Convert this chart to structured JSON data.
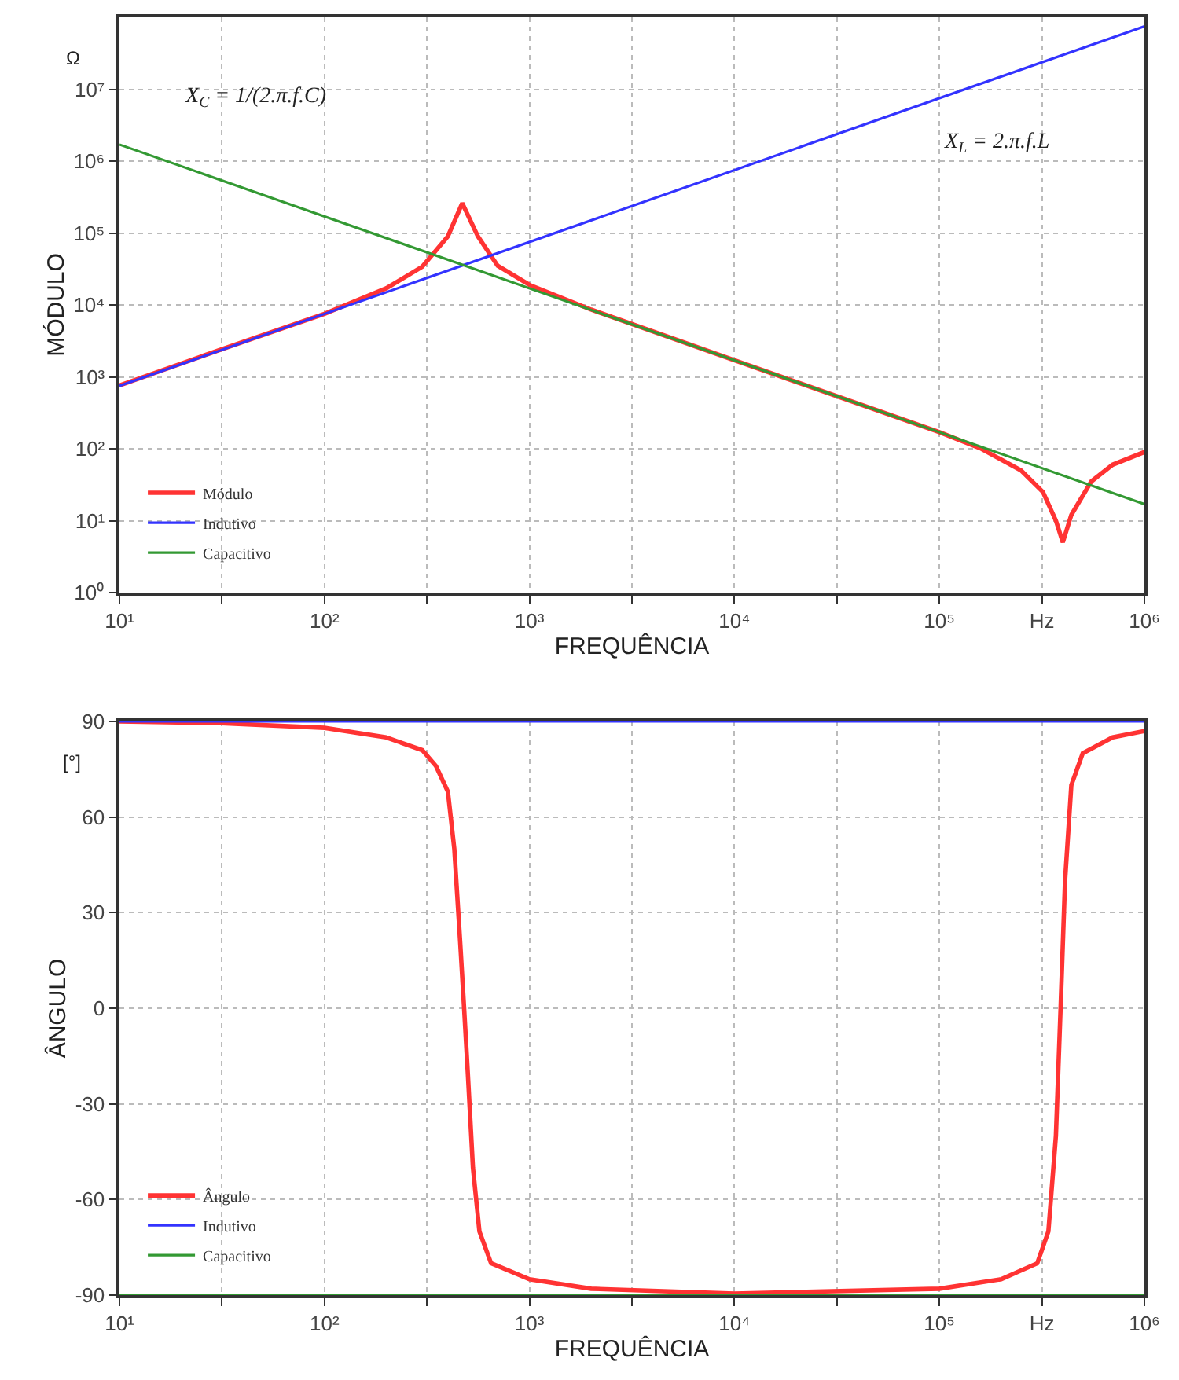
{
  "chart_data": [
    {
      "type": "line",
      "ylabel": "MÓDULO",
      "xlabel": "FREQUÊNCIA",
      "log": "xy",
      "grid": true,
      "legend": "bottom left",
      "line_style": "solid",
      "xlim": [
        10,
        1000000
      ],
      "ylim": [
        1,
        100000000
      ],
      "xticks": [
        {
          "value": 10,
          "label": "10¹"
        },
        {
          "value": 31.6,
          "label": null
        },
        {
          "value": 100,
          "label": "10²"
        },
        {
          "value": 316,
          "label": null
        },
        {
          "value": 1000,
          "label": "10³"
        },
        {
          "value": 3160,
          "label": null
        },
        {
          "value": 10000,
          "label": "10⁴"
        },
        {
          "value": 31600,
          "label": null
        },
        {
          "value": 100000,
          "label": "10⁵"
        },
        {
          "value": 316000,
          "label": "Hz"
        },
        {
          "value": 1000000,
          "label": "10⁶"
        }
      ],
      "yticks": [
        {
          "value": 1,
          "label": "10⁰"
        },
        {
          "value": 10,
          "label": "10¹"
        },
        {
          "value": 100,
          "label": "10²"
        },
        {
          "value": 1000,
          "label": "10³"
        },
        {
          "value": 10000,
          "label": "10⁴"
        },
        {
          "value": 100000,
          "label": "10⁵"
        },
        {
          "value": 1000000,
          "label": "10⁶"
        },
        {
          "value": 10000000,
          "label": "10⁷"
        }
      ],
      "annotations": [
        "Ω",
        "X$_{C}$ = 1/(2.π.f.C)",
        "X$_{L}$ = 2.π.f.L"
      ],
      "series": [
        {
          "name": "Módulo",
          "color": "#ff3333",
          "x": [
            10,
            30,
            100,
            200,
            300,
            400,
            470,
            560,
            700,
            1000,
            2000,
            10000,
            100000,
            160000,
            250000,
            320000,
            370000,
            400000,
            440000,
            550000,
            700000,
            1000000
          ],
          "values": [
            760,
            2300,
            7500,
            17000,
            34000,
            90000,
            260000,
            90000,
            35000,
            19000,
            8600,
            1700,
            170,
            100,
            50,
            25,
            10,
            5,
            12,
            35,
            60,
            90
          ]
        },
        {
          "name": "Indutivo",
          "color": "#3333ff",
          "x": [
            10,
            1000000
          ],
          "values": [
            750,
            75000000
          ]
        },
        {
          "name": "Capacitivo",
          "color": "#339933",
          "x": [
            10,
            1000000
          ],
          "values": [
            1700000,
            17
          ]
        }
      ]
    },
    {
      "type": "line",
      "ylabel": "ÂNGULO",
      "xlabel": "FREQUÊNCIA",
      "log": "x",
      "grid": true,
      "legend": "bottom left",
      "line_style": "solid",
      "xlim": [
        10,
        1000000
      ],
      "ylim": [
        -90,
        90
      ],
      "xticks": [
        {
          "value": 10,
          "label": "10¹"
        },
        {
          "value": 31.6,
          "label": null
        },
        {
          "value": 100,
          "label": "10²"
        },
        {
          "value": 316,
          "label": null
        },
        {
          "value": 1000,
          "label": "10³"
        },
        {
          "value": 3160,
          "label": null
        },
        {
          "value": 10000,
          "label": "10⁴"
        },
        {
          "value": 31600,
          "label": null
        },
        {
          "value": 100000,
          "label": "10⁵"
        },
        {
          "value": 316000,
          "label": "Hz"
        },
        {
          "value": 1000000,
          "label": "10⁶"
        }
      ],
      "yticks": [
        -90,
        -60,
        -30,
        0,
        30,
        60,
        90
      ],
      "annotations": [
        "[°]"
      ],
      "series": [
        {
          "name": "Ângulo",
          "color": "#ff3333",
          "x": [
            10,
            30,
            100,
            200,
            300,
            350,
            400,
            430,
            460,
            480,
            500,
            530,
            570,
            650,
            1000,
            2000,
            10000,
            100000,
            200000,
            300000,
            340000,
            370000,
            390000,
            410000,
            440000,
            500000,
            700000,
            1000000
          ],
          "values": [
            90,
            89.5,
            88,
            85,
            81,
            76,
            68,
            50,
            20,
            0,
            -20,
            -50,
            -70,
            -80,
            -85,
            -88,
            -89.5,
            -88,
            -85,
            -80,
            -70,
            -40,
            0,
            40,
            70,
            80,
            85,
            87
          ]
        },
        {
          "name": "Indutivo",
          "color": "#3333ff",
          "x": [
            10,
            1000000
          ],
          "values": [
            90,
            90
          ]
        },
        {
          "name": "Capacitivo",
          "color": "#339933",
          "x": [
            10,
            1000000
          ],
          "values": [
            -90,
            -90
          ]
        }
      ]
    }
  ]
}
